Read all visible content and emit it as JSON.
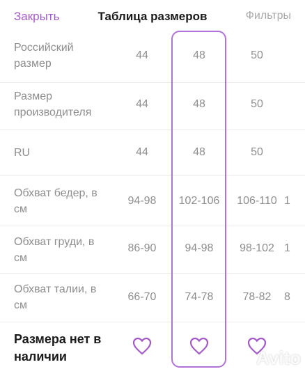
{
  "header": {
    "close_label": "Закрыть",
    "title": "Таблица размеров",
    "filters_label": "Фильтры"
  },
  "rows": [
    {
      "label": "Российский размер",
      "values": [
        "44",
        "48",
        "50",
        ""
      ]
    },
    {
      "label": "Размер производителя",
      "values": [
        "44",
        "48",
        "50",
        ""
      ]
    },
    {
      "label": "RU",
      "values": [
        "44",
        "48",
        "50",
        ""
      ]
    },
    {
      "label": "Обхват бедер, в см",
      "values": [
        "94-98",
        "102-106",
        "106-110",
        "1"
      ]
    },
    {
      "label": "Обхват груди, в см",
      "values": [
        "86-90",
        "94-98",
        "98-102",
        "1"
      ]
    },
    {
      "label": "Обхват талии, в см",
      "values": [
        "66-70",
        "74-78",
        "78-82",
        "8"
      ]
    }
  ],
  "selected_column": 2,
  "footer": {
    "label": "Размера нет в наличии",
    "heart_icon": "heart-outline-icon"
  },
  "watermark": "Avito",
  "colors": {
    "accent": "#a35bc8",
    "selection_border": "#b072d6",
    "muted_text": "#8e8e8e"
  }
}
